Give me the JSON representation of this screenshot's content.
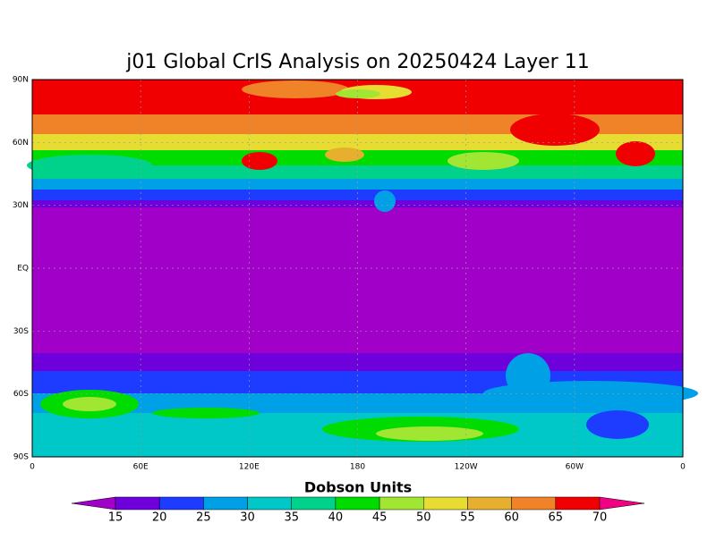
{
  "title": "j01 Global CrIS Analysis on 20250424 Layer 11",
  "lat_labels": [
    "90N",
    "60N",
    "30N",
    "EQ",
    "30S",
    "60S",
    "90S"
  ],
  "lon_labels": [
    "0",
    "60E",
    "120E",
    "180",
    "120W",
    "60W",
    "0"
  ],
  "colorbar": {
    "label": "Dobson Units",
    "levels": [
      15,
      20,
      25,
      30,
      35,
      40,
      45,
      50,
      55,
      60,
      65,
      70
    ],
    "colors": [
      "#a000c8",
      "#6e00dc",
      "#1e3cff",
      "#00a0e6",
      "#00c8c8",
      "#00d28c",
      "#00dc00",
      "#a0e632",
      "#e6dc32",
      "#e6af2d",
      "#f08228",
      "#f00000",
      "#f00082"
    ]
  }
}
